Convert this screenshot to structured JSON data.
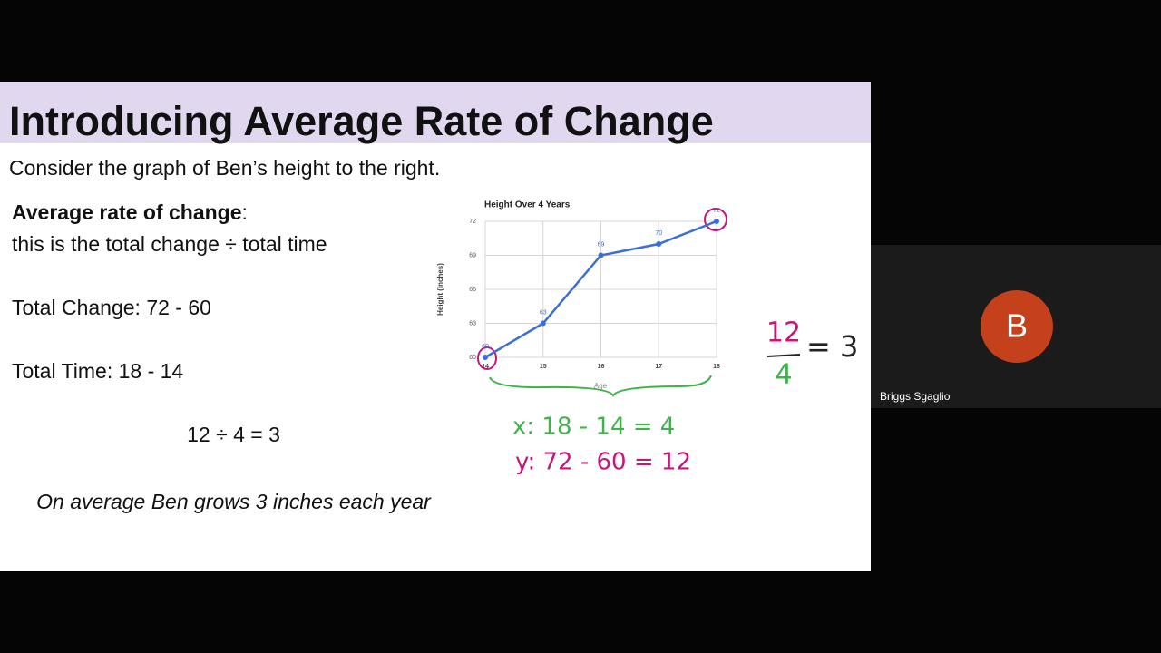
{
  "slide": {
    "title": "Introducing Average Rate of Change",
    "subtitle": "Consider the graph of Ben’s height to the right.",
    "definition_term": "Average rate of change",
    "definition_colon": ":",
    "definition": "this is the total change ÷ total time",
    "total_change": "Total Change: 72 - 60",
    "total_time": "Total Time: 18 - 14",
    "division": "12 ÷  4 = 3",
    "conclusion": "On average Ben grows 3 inches each year"
  },
  "chart_data": {
    "type": "line",
    "title": "Height Over 4 Years",
    "x_label": "Age",
    "y_label": "Height (inches)",
    "x": [
      14,
      15,
      16,
      17,
      18
    ],
    "values": [
      60,
      63,
      69,
      70,
      72
    ],
    "color": "#3b6fd6",
    "xlim": [
      14,
      18
    ],
    "xticks": [
      14,
      15,
      16,
      17,
      18
    ],
    "ylim": [
      60,
      72
    ],
    "yticks": [
      60,
      63,
      66,
      69,
      72
    ],
    "grid": true
  },
  "handwriting": {
    "fraction_numerator": "12",
    "fraction_denominator": "4",
    "fraction_result": "= 3",
    "x_work": "x: 18 - 14 = 4",
    "y_work": "y: 72 - 60 = 12"
  },
  "participant": {
    "initial": "B",
    "name": "Briggs Sgaglio"
  }
}
